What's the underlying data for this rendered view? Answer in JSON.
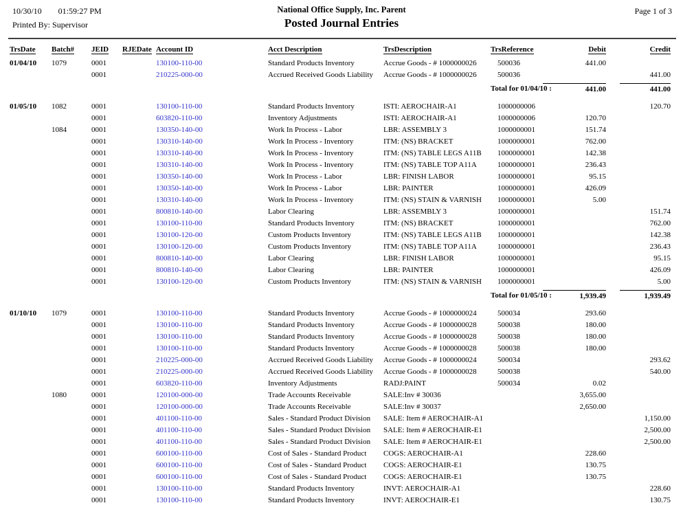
{
  "header": {
    "print_date": "10/30/10",
    "print_time": "01:59:27 PM",
    "printed_by_label": "Printed By:",
    "printed_by": "Supervisor",
    "company": "National Office Supply, Inc. Parent",
    "title": "Posted Journal Entries",
    "page": "Page 1 of 3"
  },
  "columns": [
    "TrsDate",
    "Batch#",
    "JEID",
    "RJEDate",
    "Account ID",
    "Acct Description",
    "TrsDescription",
    "TrsReference",
    "Debit",
    "Credit"
  ],
  "row_fields": [
    "trsdate",
    "batch_number",
    "jeid",
    "rjedate",
    "account_id",
    "acct_description",
    "trs_description",
    "trs_reference",
    "debit",
    "credit"
  ],
  "link_color": "#3333CC",
  "sections": [
    {
      "date": "01/04/10",
      "rows": [
        [
          "01/04/10",
          "1079",
          "0001",
          "",
          "130100-110-00",
          "Standard Products Inventory",
          "Accrue Goods - # 1000000026",
          "500036",
          "441.00",
          ""
        ],
        [
          "",
          "",
          "0001",
          "",
          "210225-000-00",
          "Accrued Received Goods Liability",
          "Accrue Goods - # 1000000026",
          "500036",
          "",
          "441.00"
        ]
      ],
      "total": {
        "label": "Total for 01/04/10 :",
        "debit": "441.00",
        "credit": "441.00"
      }
    },
    {
      "date": "01/05/10",
      "rows": [
        [
          "01/05/10",
          "1082",
          "0001",
          "",
          "130100-110-00",
          "Standard Products Inventory",
          "ISTI: AEROCHAIR-A1",
          "1000000006",
          "",
          "120.70"
        ],
        [
          "",
          "",
          "0001",
          "",
          "603820-110-00",
          "Inventory Adjustments",
          "ISTI: AEROCHAIR-A1",
          "1000000006",
          "120.70",
          ""
        ],
        [
          "",
          "1084",
          "0001",
          "",
          "130350-140-00",
          "Work In Process - Labor",
          "LBR: ASSEMBLY 3",
          "1000000001",
          "151.74",
          ""
        ],
        [
          "",
          "",
          "0001",
          "",
          "130310-140-00",
          "Work In Process - Inventory",
          "ITM: (NS) BRACKET",
          "1000000001",
          "762.00",
          ""
        ],
        [
          "",
          "",
          "0001",
          "",
          "130310-140-00",
          "Work In Process - Inventory",
          "ITM: (NS) TABLE LEGS A11B",
          "1000000001",
          "142.38",
          ""
        ],
        [
          "",
          "",
          "0001",
          "",
          "130310-140-00",
          "Work In Process - Inventory",
          "ITM: (NS) TABLE TOP A11A",
          "1000000001",
          "236.43",
          ""
        ],
        [
          "",
          "",
          "0001",
          "",
          "130350-140-00",
          "Work In Process - Labor",
          "LBR: FINISH LABOR",
          "1000000001",
          "95.15",
          ""
        ],
        [
          "",
          "",
          "0001",
          "",
          "130350-140-00",
          "Work In Process - Labor",
          "LBR: PAINTER",
          "1000000001",
          "426.09",
          ""
        ],
        [
          "",
          "",
          "0001",
          "",
          "130310-140-00",
          "Work In Process - Inventory",
          "ITM: (NS) STAIN & VARNISH",
          "1000000001",
          "5.00",
          ""
        ],
        [
          "",
          "",
          "0001",
          "",
          "800810-140-00",
          "Labor Clearing",
          "LBR: ASSEMBLY 3",
          "1000000001",
          "",
          "151.74"
        ],
        [
          "",
          "",
          "0001",
          "",
          "130100-110-00",
          "Standard Products Inventory",
          "ITM: (NS) BRACKET",
          "1000000001",
          "",
          "762.00"
        ],
        [
          "",
          "",
          "0001",
          "",
          "130100-120-00",
          "Custom Products Inventory",
          "ITM: (NS) TABLE LEGS A11B",
          "1000000001",
          "",
          "142.38"
        ],
        [
          "",
          "",
          "0001",
          "",
          "130100-120-00",
          "Custom Products Inventory",
          "ITM: (NS) TABLE TOP A11A",
          "1000000001",
          "",
          "236.43"
        ],
        [
          "",
          "",
          "0001",
          "",
          "800810-140-00",
          "Labor Clearing",
          "LBR: FINISH LABOR",
          "1000000001",
          "",
          "95.15"
        ],
        [
          "",
          "",
          "0001",
          "",
          "800810-140-00",
          "Labor Clearing",
          "LBR: PAINTER",
          "1000000001",
          "",
          "426.09"
        ],
        [
          "",
          "",
          "0001",
          "",
          "130100-120-00",
          "Custom Products Inventory",
          "ITM: (NS) STAIN & VARNISH",
          "1000000001",
          "",
          "5.00"
        ]
      ],
      "total": {
        "label": "Total for 01/05/10 :",
        "debit": "1,939.49",
        "credit": "1,939.49"
      }
    },
    {
      "date": "01/10/10",
      "rows": [
        [
          "01/10/10",
          "1079",
          "0001",
          "",
          "130100-110-00",
          "Standard Products Inventory",
          "Accrue Goods - # 1000000024",
          "500034",
          "293.60",
          ""
        ],
        [
          "",
          "",
          "0001",
          "",
          "130100-110-00",
          "Standard Products Inventory",
          "Accrue Goods - # 1000000028",
          "500038",
          "180.00",
          ""
        ],
        [
          "",
          "",
          "0001",
          "",
          "130100-110-00",
          "Standard Products Inventory",
          "Accrue Goods - # 1000000028",
          "500038",
          "180.00",
          ""
        ],
        [
          "",
          "",
          "0001",
          "",
          "130100-110-00",
          "Standard Products Inventory",
          "Accrue Goods - # 1000000028",
          "500038",
          "180.00",
          ""
        ],
        [
          "",
          "",
          "0001",
          "",
          "210225-000-00",
          "Accrued Received Goods Liability",
          "Accrue Goods - # 1000000024",
          "500034",
          "",
          "293.62"
        ],
        [
          "",
          "",
          "0001",
          "",
          "210225-000-00",
          "Accrued Received Goods Liability",
          "Accrue Goods - # 1000000028",
          "500038",
          "",
          "540.00"
        ],
        [
          "",
          "",
          "0001",
          "",
          "603820-110-00",
          "Inventory Adjustments",
          "RADJ:PAINT",
          "500034",
          "0.02",
          ""
        ],
        [
          "",
          "1080",
          "0001",
          "",
          "120100-000-00",
          "Trade Accounts Receivable",
          "SALE:Inv #  30036",
          "",
          "3,655.00",
          ""
        ],
        [
          "",
          "",
          "0001",
          "",
          "120100-000-00",
          "Trade Accounts Receivable",
          "SALE:Inv #  30037",
          "",
          "2,650.00",
          ""
        ],
        [
          "",
          "",
          "0001",
          "",
          "401100-110-00",
          "Sales - Standard Product Division",
          "SALE: Item # AEROCHAIR-A1",
          "",
          "",
          "1,150.00"
        ],
        [
          "",
          "",
          "0001",
          "",
          "401100-110-00",
          "Sales - Standard Product Division",
          "SALE: Item # AEROCHAIR-E1",
          "",
          "",
          "2,500.00"
        ],
        [
          "",
          "",
          "0001",
          "",
          "401100-110-00",
          "Sales - Standard Product Division",
          "SALE: Item # AEROCHAIR-E1",
          "",
          "",
          "2,500.00"
        ],
        [
          "",
          "",
          "0001",
          "",
          "600100-110-00",
          "Cost of Sales - Standard Product",
          "COGS: AEROCHAIR-A1",
          "",
          "228.60",
          ""
        ],
        [
          "",
          "",
          "0001",
          "",
          "600100-110-00",
          "Cost of Sales - Standard Product",
          "COGS: AEROCHAIR-E1",
          "",
          "130.75",
          ""
        ],
        [
          "",
          "",
          "0001",
          "",
          "600100-110-00",
          "Cost of Sales - Standard Product",
          "COGS: AEROCHAIR-E1",
          "",
          "130.75",
          ""
        ],
        [
          "",
          "",
          "0001",
          "",
          "130100-110-00",
          "Standard Products Inventory",
          "INVT: AEROCHAIR-A1",
          "",
          "",
          "228.60"
        ],
        [
          "",
          "",
          "0001",
          "",
          "130100-110-00",
          "Standard Products Inventory",
          "INVT: AEROCHAIR-E1",
          "",
          "",
          "130.75"
        ]
      ]
    }
  ]
}
